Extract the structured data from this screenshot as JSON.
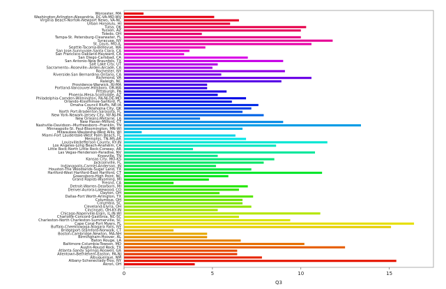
{
  "chart_data": {
    "type": "barh",
    "xlabel": "Q3",
    "colormap": "hsv-reversed",
    "categories": [
      "Worcester, MA",
      "Washington-Arlington-Alexandria, DC-VA-MD-WV",
      "Virginia Beach-Norfolk-Newport News, VA-NC",
      "Urban Honolulu, HI",
      "Tulsa, OK",
      "Tucson, AZ",
      "Toledo, OH",
      "Tampa-St. Petersburg-Clearwater, FL",
      "Syracuse, NY",
      "St. Louis, MO-IL",
      "Seattle-Tacoma-Bellevue, WA",
      "San Jose-Sunnyvale-Santa Clara, CA",
      "San Francisco-Oakland-Hayward, CA",
      "San Diego-Carlsbad, CA",
      "San Antonio-New Braunfels, TX",
      "Salt Lake City, UT",
      "Sacramento--Roseville--Arden-Arcade, CA",
      "Rochester, NY",
      "Riverside-San Bernardino-Ontario, CA",
      "Richmond, VA",
      "Raleigh, NC",
      "Providence-Warwick, RI-MA",
      "Portland-Vancouver-Hillsboro, OR-WA",
      "Pittsburgh, PA",
      "Phoenix-Mesa-Scottsdale, AZ",
      "Philadelphia-Camden-Wilmington, PA-NJ-DE-MD",
      "Orlando-Kissimmee-Sanford, FL",
      "Omaha-Council Bluffs, NE-IA",
      "Oklahoma City, OK",
      "North Port-Bradenton-Sarasota, FL",
      "New York-Newark-Jersey City, NY-NJ-PA",
      "New Orleans-Metairie, LA",
      "New Haven-Milford, CT",
      "Nashville-Davidson--Murfreesboro--Franklin, TN",
      "Minneapolis-St. Paul-Bloomington, MN-WI",
      "Milwaukee-Waukesha-West Allis, WI",
      "Miami-Fort Lauderdale-West Palm Beach, FL",
      "Memphis, TN-MS-AR",
      "Louisville/Jefferson County, KY-IN",
      "Los Angeles-Long Beach-Anaheim, CA",
      "Little Rock-North Little Rock-Conway, AR",
      "Las Vegas-Henderson-Paradise, NV",
      "Knoxville, TN",
      "Kansas City, MO-KS",
      "Jacksonville, FL",
      "Indianapolis-Carmel-Anderson, IN",
      "Houston-The Woodlands-Sugar Land, TX",
      "Hartford-West Hartford-East Hartford, CT",
      "Greensboro-High Point, NC",
      "Grand Rapids-Wyoming, MI",
      "Fresno, CA",
      "Detroit-Warren-Dearborn, MI",
      "Denver-Aurora-Lakewood, CO",
      "Dayton, OH",
      "Dallas-Fort Worth-Arlington, TX",
      "Columbus, OH",
      "Columbia, SC",
      "Cleveland-Elyria, OH",
      "Cincinnati, OH-KY-IN",
      "Chicago-Naperville-Elgin, IL-IN-WI",
      "Charlotte-Concord-Gastonia, NC-SC",
      "Charleston-North Charleston-Summerville, SC",
      "Cape Coral-Fort Myers, FL",
      "Buffalo-Cheektowaga-Niagara Falls, NY",
      "Bridgeport-Stamford-Norwalk, CT",
      "Boston-Cambridge-Newton, MA-NH",
      "Birmingham-Hoover, AL",
      "Baton Rouge, LA",
      "Baltimore-Columbia-Towson, MD",
      "Austin-Round Rock, TX",
      "Atlanta-Sandy Springs-Roswell, GA",
      "Allentown-Bethlehem-Easton, PA-NJ",
      "Albuquerque, NM",
      "Albany-Schenectady-Troy, NY",
      "Akron, OH"
    ],
    "values": [
      1.1,
      5.1,
      6.5,
      6.0,
      10.3,
      10.0,
      4.4,
      10.0,
      11.8,
      10.6,
      4.6,
      3.7,
      3.4,
      7.0,
      9.0,
      5.3,
      5.0,
      9.1,
      5.5,
      10.6,
      8.9,
      4.7,
      4.7,
      5.8,
      5.3,
      6.9,
      6.1,
      7.6,
      7.2,
      6.7,
      7.9,
      4.3,
      9.0,
      13.4,
      6.7,
      1.0,
      6.3,
      6.9,
      11.5,
      8.6,
      3.9,
      10.8,
      5.3,
      8.5,
      7.9,
      5.2,
      7.2,
      11.2,
      5.9,
      4.8,
      2.8,
      7.0,
      6.5,
      5.4,
      7.3,
      6.7,
      6.7,
      7.2,
      5.3,
      11.1,
      6.5,
      9.4,
      16.4,
      15.1,
      2.8,
      4.7,
      4.7,
      6.6,
      10.2,
      12.5,
      6.4,
      6.4,
      7.8,
      15.4,
      4.0
    ],
    "xlim": [
      0,
      17.5
    ],
    "xticks": [
      0,
      5,
      10,
      15
    ]
  }
}
